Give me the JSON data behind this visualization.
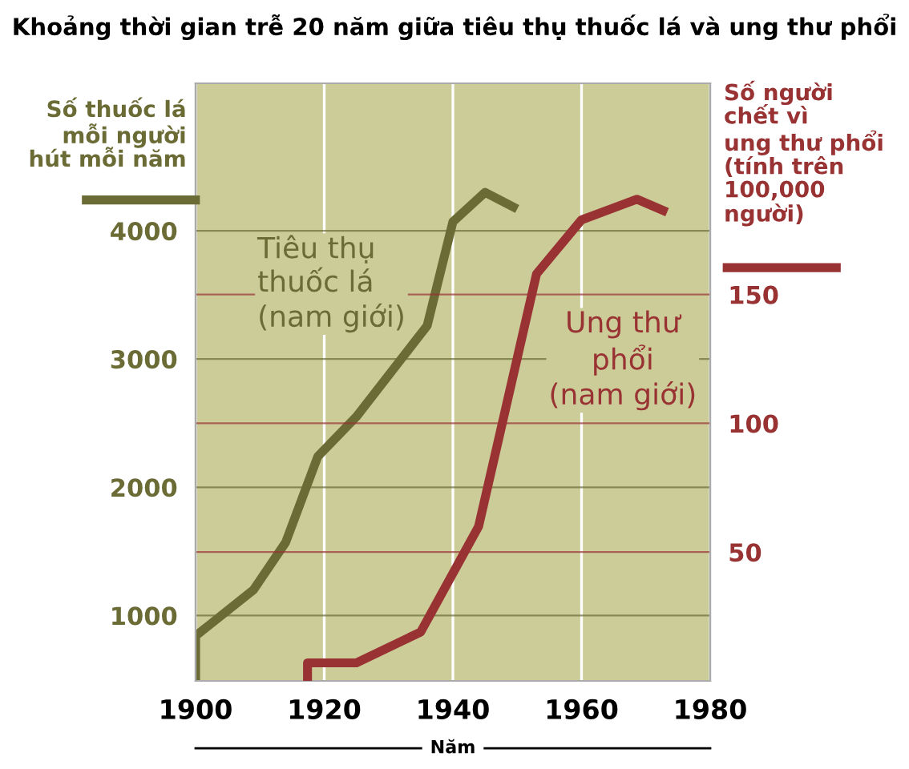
{
  "chart_data": {
    "type": "line",
    "title": "Khoảng thời gian trễ 20 năm giữa tiêu thụ thuốc lá và ung thư phổi",
    "xlabel": "Năm",
    "ylabel": "Số thuốc lá\nmỗi người\nhút mỗi năm",
    "y2label": "Số người\nchết vì\nung thư phổi\n(tính trên\n100,000\nngười)",
    "xlim": [
      1900,
      1980
    ],
    "xticks": [
      1900,
      1920,
      1940,
      1960,
      1980
    ],
    "ylim": [
      490,
      5150
    ],
    "yticks": [
      1000,
      2000,
      3000,
      4000
    ],
    "y2lim": [
      0,
      232
    ],
    "y2ticks": [
      50,
      100,
      150
    ],
    "grid": true,
    "legend": false,
    "marker": "none",
    "line_style": "solid",
    "series": [
      {
        "name": "Tiêu thụ\nthuốc lá\n(nam giới)",
        "color": "#6b6b35",
        "axis": "y",
        "x": [
          1900,
          1900,
          1909,
          1914,
          1919,
          1925,
          1936,
          1940,
          1945,
          1950
        ],
        "values": [
          490,
          840,
          1200,
          1570,
          2240,
          2550,
          3260,
          4070,
          4300,
          4170
        ]
      },
      {
        "name": "Ung thư\nphổi\n(nam giới)",
        "color": "#993333",
        "axis": "y2",
        "x": [
          1917.4,
          1917.4,
          1925,
          1935,
          1944,
          1953,
          1960,
          1968.6,
          1973.3
        ],
        "values": [
          0,
          7,
          7,
          19,
          60,
          158,
          179,
          187,
          182
        ]
      }
    ]
  }
}
